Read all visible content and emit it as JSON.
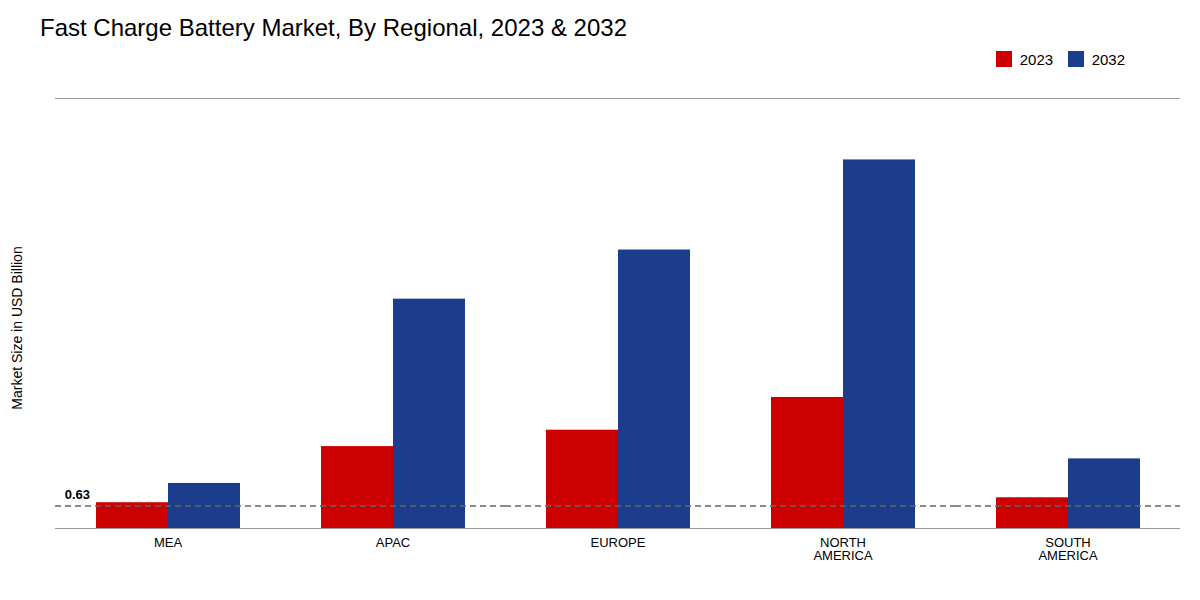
{
  "chart_data": {
    "type": "bar",
    "title": "Fast Charge Battery Market, By Regional, 2023 & 2032",
    "ylabel": "Market Size in USD Billion",
    "categories": [
      "MEA",
      "APAC",
      "EUROPE",
      "NORTH\nAMERICA",
      "SOUTH\nAMERICA"
    ],
    "series": [
      {
        "name": "2023",
        "color": "#cc0000",
        "values": [
          0.63,
          2.0,
          2.4,
          3.2,
          0.75
        ]
      },
      {
        "name": "2032",
        "color": "#1c3c8c",
        "values": [
          1.1,
          5.6,
          6.8,
          9.0,
          1.7
        ]
      }
    ],
    "reference_line": 0.55,
    "annotations": [
      {
        "text": "0.63",
        "x": "MEA",
        "y": 0.63
      }
    ],
    "ylim": [
      0,
      10.5
    ],
    "tick_labels": "x",
    "grid": false,
    "legend": "upper right"
  }
}
